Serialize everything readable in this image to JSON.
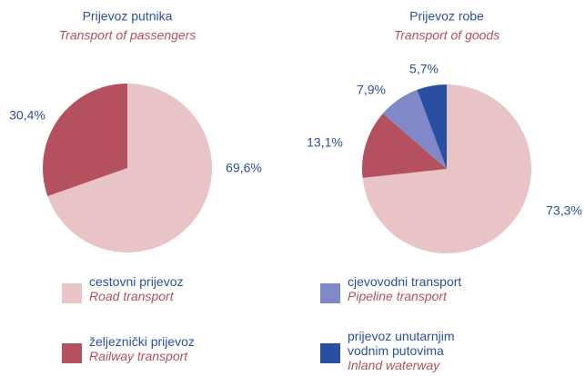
{
  "chart_data": [
    {
      "type": "pie",
      "title": "Prijevoz putnika",
      "subtitle": "Transport of passengers",
      "values": [
        69.6,
        30.4
      ],
      "value_labels": [
        "69,6%",
        "30,4%"
      ]
    },
    {
      "type": "pie",
      "title": "Prijevoz robe",
      "subtitle": "Transport of goods",
      "values": [
        73.3,
        13.1,
        7.9,
        5.7
      ],
      "value_labels": [
        "73,3%",
        "13,1%",
        "7,9%",
        "5,7%"
      ]
    }
  ],
  "legend": {
    "items": [
      {
        "label": "cestovni prijevoz",
        "label_en": "Road transport",
        "color": "#e8c4c6"
      },
      {
        "label": "željeznički prijevoz",
        "label_en": "Railway transport",
        "color": "#b5505f"
      },
      {
        "label": "cjevovodni transport",
        "label_en": "Pipeline transport",
        "color": "#8088c8"
      },
      {
        "label": "prijevoz unutarnjim vodnim putovima",
        "label_en": "Inland waterway transport",
        "color": "#2b4fa0"
      }
    ]
  }
}
